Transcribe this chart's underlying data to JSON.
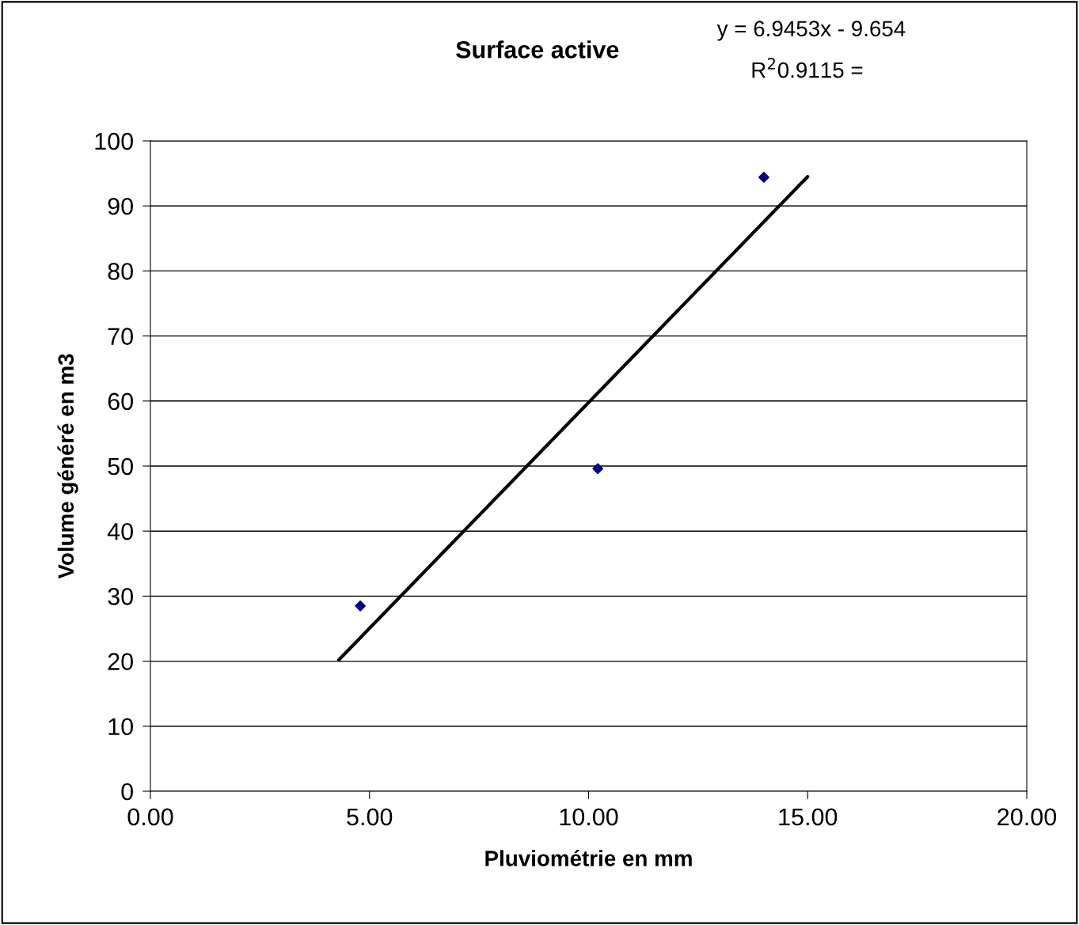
{
  "chart_data": {
    "type": "scatter",
    "title": "Surface active",
    "xlabel": "Pluviométrie en mm",
    "ylabel": "Volume généré en m3",
    "annotations": [
      "y = 6.9453x - 9.654",
      "R$^{2}$0.9115 ="
    ],
    "series": [
      {
        "color": "#000080",
        "marker": "diamond",
        "x": [
          4.79,
          10.21,
          14.0
        ],
        "values": [
          28.5,
          49.6,
          94.4
        ]
      },
      {
        "type": "line",
        "color": "#000000",
        "marker": "none",
        "line_style": "solid",
        "x": [
          4.3,
          15.0
        ],
        "values": [
          20.2,
          94.5
        ]
      }
    ],
    "xlim": [
      0,
      20
    ],
    "xticks": [
      {
        "value": 0,
        "label": "0.00"
      },
      {
        "value": 5,
        "label": "5.00"
      },
      {
        "value": 10,
        "label": "10.00"
      },
      {
        "value": 15,
        "label": "15.00"
      },
      {
        "value": 20,
        "label": "20.00"
      }
    ],
    "ylim": [
      0,
      100
    ],
    "yticks": [
      0,
      10,
      20,
      30,
      40,
      50,
      60,
      70,
      80,
      90,
      100
    ],
    "grid": "y",
    "legend": false
  }
}
